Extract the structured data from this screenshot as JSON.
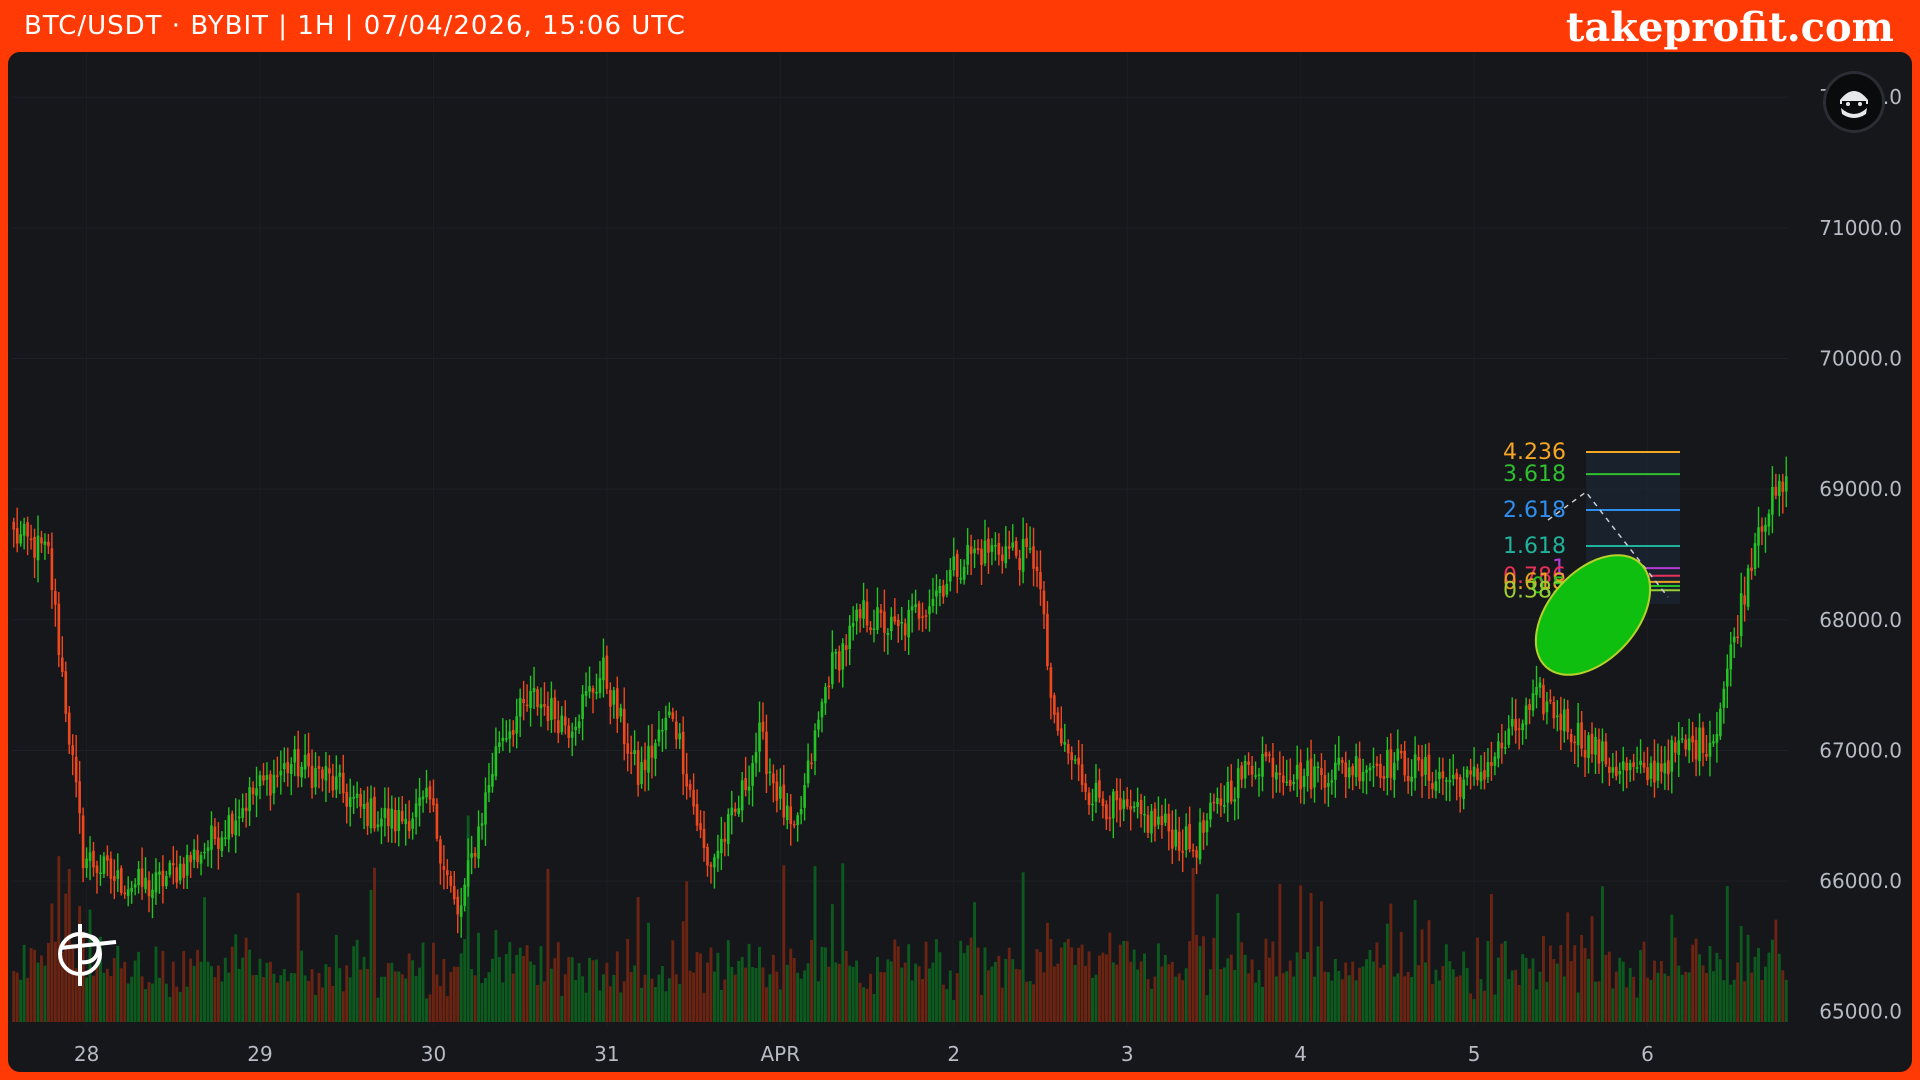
{
  "header": {
    "symbol": "BTC/USDT · BYBIT | 1H | 07/04/2026, 15:06 UTC",
    "brand": "takeprofit.com"
  },
  "colors": {
    "frame": "#ff3a05",
    "background": "#15171b",
    "up": "#22c322",
    "down": "#f0481d",
    "volume_up": "#0d5a1e",
    "volume_down": "#6b2412",
    "axis_text": "#b7bbc3",
    "ellipse": "#0fbf0f"
  },
  "icons": {
    "avatar": "ninja-avatar-icon",
    "logo": "takeprofit-logo-icon"
  },
  "chart_data": {
    "type": "candlestick",
    "interval": "1H",
    "ylim": [
      64600,
      72300
    ],
    "ytick_labels": [
      "72000.0",
      "71000.0",
      "70000.0",
      "69000.0",
      "68000.0",
      "67000.0",
      "66000.0",
      "65000.0"
    ],
    "xtick_labels": [
      "28",
      "29",
      "30",
      "31",
      "APR",
      "2",
      "3",
      "4",
      "5",
      "6"
    ],
    "close_path": [
      [
        0,
        68650
      ],
      [
        10,
        68500
      ],
      [
        20,
        66200
      ],
      [
        30,
        66000
      ],
      [
        40,
        65950
      ],
      [
        55,
        66250
      ],
      [
        70,
        66700
      ],
      [
        80,
        66900
      ],
      [
        90,
        66800
      ],
      [
        100,
        66550
      ],
      [
        110,
        66450
      ],
      [
        120,
        66600
      ],
      [
        128,
        65700
      ],
      [
        140,
        67100
      ],
      [
        150,
        67400
      ],
      [
        160,
        67200
      ],
      [
        170,
        67600
      ],
      [
        180,
        66800
      ],
      [
        190,
        67300
      ],
      [
        200,
        66100
      ],
      [
        208,
        66500
      ],
      [
        215,
        67100
      ],
      [
        225,
        66300
      ],
      [
        235,
        67600
      ],
      [
        245,
        68050
      ],
      [
        255,
        67900
      ],
      [
        265,
        68200
      ],
      [
        275,
        68500
      ],
      [
        285,
        68550
      ],
      [
        295,
        68450
      ],
      [
        300,
        67150
      ],
      [
        310,
        66700
      ],
      [
        320,
        66500
      ],
      [
        330,
        66450
      ],
      [
        340,
        66250
      ],
      [
        350,
        66700
      ],
      [
        360,
        66950
      ],
      [
        370,
        66800
      ],
      [
        380,
        66850
      ],
      [
        390,
        66900
      ],
      [
        400,
        66900
      ],
      [
        410,
        66800
      ],
      [
        420,
        66750
      ],
      [
        430,
        67050
      ],
      [
        440,
        67400
      ],
      [
        450,
        67150
      ],
      [
        460,
        66900
      ],
      [
        470,
        66800
      ],
      [
        480,
        67000
      ],
      [
        490,
        67100
      ],
      [
        503,
        68750
      ],
      [
        510,
        69000
      ]
    ],
    "fibonacci": {
      "levels": [
        "4.236",
        "3.618",
        "2.618",
        "1.618",
        "1",
        "0.786",
        "0.618",
        "0.5",
        "0.382"
      ],
      "colors": [
        "#f5a623",
        "#2fbf2f",
        "#2f8ff0",
        "#1fb39c",
        "#b43cd6",
        "#e8305a",
        "#e8a020",
        "#22c322",
        "#9acd32"
      ]
    }
  }
}
